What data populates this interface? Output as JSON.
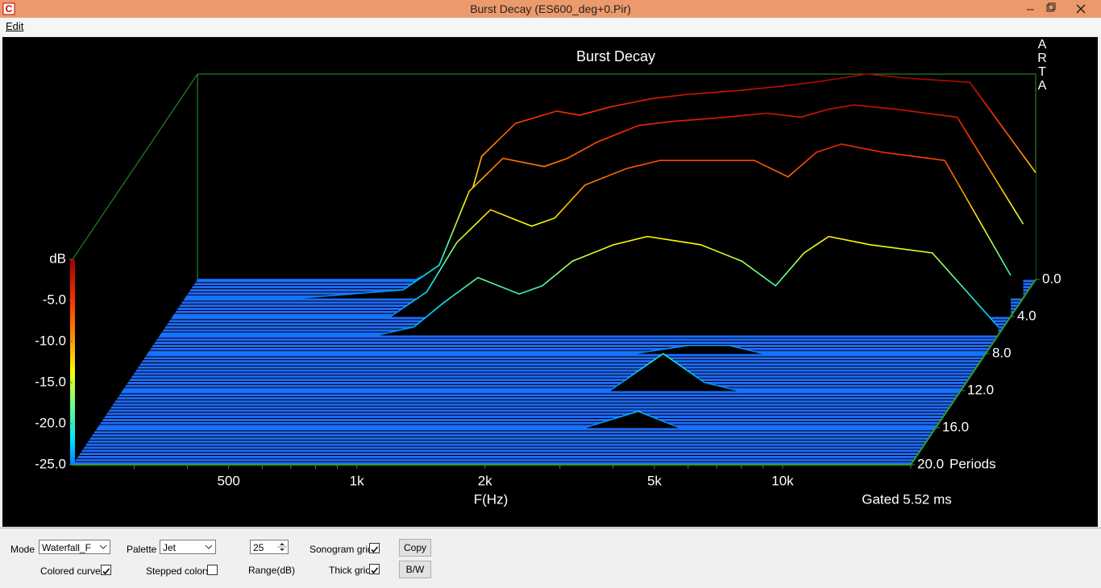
{
  "window": {
    "title": "Burst Decay  (ES600_deg+0.Pir)"
  },
  "menu": [
    "Edit"
  ],
  "chart_data": {
    "type": "waterfall",
    "title": "Burst Decay",
    "x_label": "F(Hz)",
    "annotation": "Gated 5.52 ms",
    "watermark": "ARTA",
    "palette": "jet",
    "xscale": "log",
    "xlim": [
      215,
      20000
    ],
    "xticks": [
      {
        "value": 500,
        "label": "500"
      },
      {
        "value": 1000,
        "label": "1k"
      },
      {
        "value": 2000,
        "label": "2k"
      },
      {
        "value": 5000,
        "label": "5k"
      },
      {
        "value": 10000,
        "label": "10k"
      }
    ],
    "minor_xticks": [
      300,
      400,
      600,
      700,
      800,
      900,
      3000,
      4000,
      6000,
      7000,
      8000,
      9000,
      20000
    ],
    "ylim": [
      -25,
      0
    ],
    "yticks": [
      {
        "value": -25,
        "label": "-25.0"
      },
      {
        "value": -20,
        "label": "-20.0"
      },
      {
        "value": -15,
        "label": "-15.0"
      },
      {
        "value": -10,
        "label": "-10.0"
      },
      {
        "value": -5,
        "label": "-5.0"
      },
      {
        "value": 0,
        "label": "dB"
      }
    ],
    "zlim": [
      0,
      20
    ],
    "zticks": [
      {
        "value": 0,
        "label": "0.0"
      },
      {
        "value": 4,
        "label": "4.0"
      },
      {
        "value": 8,
        "label": "8.0"
      },
      {
        "value": 12,
        "label": "12.0"
      },
      {
        "value": 16,
        "label": "16.0"
      },
      {
        "value": 20,
        "label": "20.0"
      }
    ],
    "z_label": "Periods",
    "x": [
      215,
      400,
      700,
      850,
      1000,
      1200,
      1500,
      1700,
      2000,
      2500,
      3000,
      4000,
      5000,
      6000,
      7000,
      8000,
      10000,
      14000,
      20000
    ],
    "slices": [
      {
        "period": 0,
        "values": [
          -25,
          -25,
          -25,
          -23,
          -10,
          -6,
          -4.5,
          -5,
          -4,
          -3,
          -2.5,
          -2,
          -1.5,
          -1,
          -0.5,
          0,
          -0.5,
          -1,
          -12
        ]
      },
      {
        "period": 2,
        "values": [
          -25,
          -25,
          -24,
          -21,
          -12,
          -8,
          -9,
          -8,
          -6,
          -4,
          -3.5,
          -3,
          -2.5,
          -3,
          -2,
          -1.5,
          -2,
          -3,
          -16
        ]
      },
      {
        "period": 4,
        "values": [
          -25,
          -25,
          -25,
          -22,
          -16,
          -12,
          -14,
          -13,
          -9,
          -7,
          -6,
          -6,
          -6,
          -8,
          -5,
          -4,
          -5,
          -6,
          -20
        ]
      },
      {
        "period": 6,
        "values": [
          -25,
          -25,
          -25,
          -24,
          -21,
          -18,
          -20,
          -19,
          -16,
          -14,
          -13,
          -14,
          -16,
          -19,
          -15,
          -13,
          -14,
          -15,
          -24
        ]
      },
      {
        "period": 8,
        "values": [
          -25,
          -25,
          -25,
          -25,
          -25,
          -25,
          -25,
          -25,
          -25,
          -25,
          -25,
          -24,
          -24,
          -25,
          -25,
          -25,
          -25,
          -25,
          -25
        ]
      },
      {
        "period": 12,
        "values": [
          -25,
          -25,
          -25,
          -25,
          -25,
          -25,
          -25,
          -25,
          -25,
          -25,
          -25,
          -20.5,
          -24,
          -25,
          -25,
          -25,
          -25,
          -25,
          -25
        ]
      },
      {
        "period": 16,
        "values": [
          -25,
          -25,
          -25,
          -25,
          -25,
          -25,
          -25,
          -25,
          -25,
          -25,
          -25,
          -23,
          -25,
          -25,
          -25,
          -25,
          -25,
          -25,
          -25
        ]
      },
      {
        "period": 20,
        "values": [
          -25,
          -25,
          -25,
          -25,
          -25,
          -25,
          -25,
          -25,
          -25,
          -25,
          -25,
          -25,
          -25,
          -25,
          -25,
          -25,
          -25,
          -25,
          -25
        ]
      }
    ]
  },
  "controls": {
    "mode": {
      "label": "Mode",
      "value": "Waterfall_F"
    },
    "palette": {
      "label": "Palette",
      "value": "Jet"
    },
    "range": {
      "label": "Range(dB)",
      "value": 25
    },
    "checkboxes": [
      {
        "label": "Sonogram grid",
        "checked": true
      },
      {
        "label": "Thick grid",
        "checked": true
      },
      {
        "label": "Colored curves",
        "checked": true
      },
      {
        "label": "Stepped colors",
        "checked": false
      }
    ],
    "buttons": [
      "Copy",
      "B/W"
    ]
  }
}
